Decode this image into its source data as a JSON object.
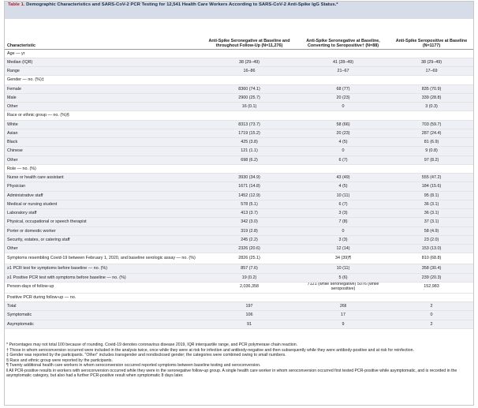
{
  "caption": {
    "lead": "Table 1.",
    "text": "Demographic Characteristics and SARS-CoV-2 PCR Testing for 12,541 Health Care Workers According to SARS-CoV-2 Anti-Spike IgG Status.*"
  },
  "table": {
    "headers": [
      "Characteristic",
      "Anti-Spike Seronegative at Baseline and throughout Follow-Up (N=11,276)",
      "Anti-Spike Seronegative at Baseline, Converting to Seropositive† (N=88)",
      "Anti-Spike Seropositive at Baseline (N=1177)"
    ],
    "rows": [
      {
        "label": "Age — yr",
        "cells": [
          "",
          "",
          ""
        ]
      },
      {
        "label": "Median (IQR)",
        "cells": [
          "38 (29–49)",
          "41 (28–49)",
          "38 (29–49)"
        ]
      },
      {
        "label": "Range",
        "cells": [
          "16–86",
          "21–67",
          "17–69"
        ]
      },
      {
        "label": "Gender — no. (%)‡",
        "cells": [
          "",
          "",
          ""
        ]
      },
      {
        "label": "Female",
        "cells": [
          "8360 (74.1)",
          "68 (77)",
          "835 (70.9)"
        ]
      },
      {
        "label": "Male",
        "cells": [
          "2900 (25.7)",
          "20 (23)",
          "339 (28.8)"
        ]
      },
      {
        "label": "Other",
        "cells": [
          "16 (0.1)",
          "0",
          "3 (0.3)"
        ]
      },
      {
        "label": "Race or ethnic group — no. (%)§",
        "cells": [
          "",
          "",
          ""
        ]
      },
      {
        "label": "White",
        "cells": [
          "8313 (73.7)",
          "58 (66)",
          "703 (59.7)"
        ]
      },
      {
        "label": "Asian",
        "cells": [
          "1719 (15.2)",
          "20 (23)",
          "287 (24.4)"
        ]
      },
      {
        "label": "Black",
        "cells": [
          "425 (3.8)",
          "4 (5)",
          "81 (6.9)"
        ]
      },
      {
        "label": "Chinese",
        "cells": [
          "121 (1.1)",
          "0",
          "9 (0.8)"
        ]
      },
      {
        "label": "Other",
        "cells": [
          "698 (6.2)",
          "6 (7)",
          "97 (8.2)"
        ]
      },
      {
        "label": "Role — no. (%)",
        "cells": [
          "",
          "",
          ""
        ]
      },
      {
        "label": "Nurse or health care assistant",
        "cells": [
          "3930 (34.9)",
          "43 (49)",
          "555 (47.2)"
        ]
      },
      {
        "label": "Physician",
        "cells": [
          "1671 (14.8)",
          "4 (5)",
          "184 (15.6)"
        ]
      },
      {
        "label": "Administrative staff",
        "cells": [
          "1452 (12.9)",
          "10 (11)",
          "95 (8.1)"
        ]
      },
      {
        "label": "Medical or nursing student",
        "cells": [
          "578 (5.1)",
          "6 (7)",
          "36 (3.1)"
        ]
      },
      {
        "label": "Laboratory staff",
        "cells": [
          "413 (3.7)",
          "3 (3)",
          "36 (3.1)"
        ]
      },
      {
        "label": "Physical, occupational or speech therapist",
        "cells": [
          "342 (3.0)",
          "7 (8)",
          "37 (3.1)"
        ]
      },
      {
        "label": "Porter or domestic worker",
        "cells": [
          "319 (2.8)",
          "0",
          "58 (4.9)"
        ]
      },
      {
        "label": "Security, estates, or catering staff",
        "cells": [
          "245 (2.2)",
          "3 (3)",
          "23 (2.0)"
        ]
      },
      {
        "label": "Other",
        "cells": [
          "2326 (20.6)",
          "12 (14)",
          "153 (13.0)"
        ]
      },
      {
        "label": "Symptoms resembling Covid-19 between February 1, 2020, and baseline serologic assay — no. (%)",
        "cells": [
          "2826 (25.1)",
          "34 (39)¶",
          "810 (68.8)"
        ]
      },
      {
        "label": "≥1 PCR test for symptoms before baseline — no. (%)",
        "cells": [
          "857 (7.6)",
          "10 (11)",
          "358 (30.4)"
        ]
      },
      {
        "label": "≥1 Positive PCR test with symptoms before baseline — no. (%)",
        "cells": [
          "19 (0.2)",
          "5 (6)",
          "239 (20.3)"
        ]
      },
      {
        "label": "Person-days of follow-up",
        "cells": [
          "2,036,358",
          "7121 (while seronegative) 5076 (while seropositive)",
          "152,983"
        ]
      },
      {
        "label": "Positive PCR during follow-up — no.",
        "cells": [
          "",
          "",
          ""
        ]
      },
      {
        "label": "Total",
        "cells": [
          "197",
          "26‖",
          "2"
        ]
      },
      {
        "label": "Symptomatic",
        "cells": [
          "106",
          "17",
          "0"
        ]
      },
      {
        "label": "Asymptomatic",
        "cells": [
          "91",
          "9",
          "2"
        ]
      }
    ]
  },
  "footnotes": [
    "* Percentages may not total 100 because of rounding. Covid-19 denotes coronavirus disease 2019, IQR interquartile range, and PCR polymerase chain reaction.",
    "† Those in whom seroconversion occurred were included in the analysis twice, once while they were at risk for infection and antibody-negative and then subsequently while they were antibody-positive and at risk for reinfection.",
    "‡ Gender was reported by the participants. \"Other\" includes transgender and nondisclosed gender; the categories were combined owing to small numbers.",
    "§ Race and ethnic group were reported by the participants.",
    "¶ Twenty additional health care workers in whom seroconversion occurred reported symptoms between baseline testing and seroconversion.",
    "‖ All PCR-positive results in workers with seroconversion occurred while they were in the seronegative follow-up group. A single health care worker in whom seroconversion occurred first tested PCR-positive while asymptomatic, and is recorded in the asymptomatic category, but also had a further PCR-positive result when symptomatic 8 days later."
  ]
}
